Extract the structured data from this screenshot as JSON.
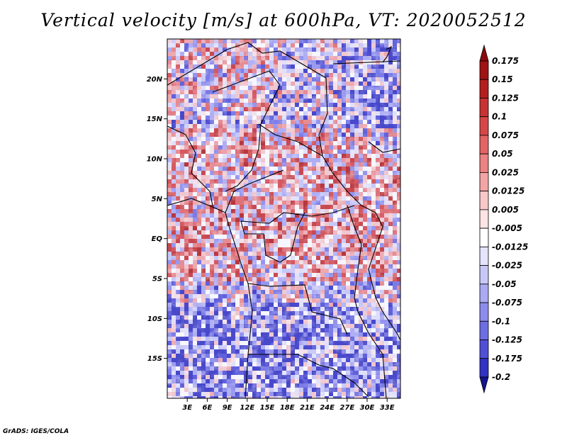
{
  "title": "Vertical velocity [m/s] at 600hPa, VT: 2020052512",
  "footer": "GrADS: IGES/COLA",
  "map": {
    "lon_range": [
      0,
      35
    ],
    "lat_range": [
      -20,
      25
    ],
    "lat_ticks": [
      {
        "value": 20,
        "label": "20N"
      },
      {
        "value": 15,
        "label": "15N"
      },
      {
        "value": 10,
        "label": "10N"
      },
      {
        "value": 5,
        "label": "5N"
      },
      {
        "value": 0,
        "label": "EQ"
      },
      {
        "value": -5,
        "label": "5S"
      },
      {
        "value": -10,
        "label": "10S"
      },
      {
        "value": -15,
        "label": "15S"
      }
    ],
    "lon_ticks": [
      {
        "value": 3,
        "label": "3E"
      },
      {
        "value": 6,
        "label": "6E"
      },
      {
        "value": 9,
        "label": "9E"
      },
      {
        "value": 12,
        "label": "12E"
      },
      {
        "value": 15,
        "label": "15E"
      },
      {
        "value": 18,
        "label": "18E"
      },
      {
        "value": 21,
        "label": "21E"
      },
      {
        "value": 24,
        "label": "24E"
      },
      {
        "value": 27,
        "label": "27E"
      },
      {
        "value": 30,
        "label": "30E"
      },
      {
        "value": 33,
        "label": "33E"
      }
    ]
  },
  "colorbar": {
    "levels": [
      {
        "label": "0.175",
        "color": "#a01414"
      },
      {
        "label": "0.15",
        "color": "#b41e1e"
      },
      {
        "label": "0.125",
        "color": "#c83232"
      },
      {
        "label": "0.1",
        "color": "#d74646"
      },
      {
        "label": "0.075",
        "color": "#e36464"
      },
      {
        "label": "0.05",
        "color": "#ec8282"
      },
      {
        "label": "0.025",
        "color": "#f3a5a5"
      },
      {
        "label": "0.0125",
        "color": "#f8c8c8"
      },
      {
        "label": "0.005",
        "color": "#fce4e4"
      },
      {
        "label": "-0.005",
        "color": "#ffffff"
      },
      {
        "label": "-0.0125",
        "color": "#e4e4fc"
      },
      {
        "label": "-0.025",
        "color": "#c8c8f8"
      },
      {
        "label": "-0.05",
        "color": "#aaaaf3"
      },
      {
        "label": "-0.075",
        "color": "#8c8cec"
      },
      {
        "label": "-0.1",
        "color": "#6e6ee3"
      },
      {
        "label": "-0.125",
        "color": "#5050d7"
      },
      {
        "label": "-0.175",
        "color": "#3232c3"
      },
      {
        "label": "-0.2",
        "color": "#1e1eaa"
      }
    ],
    "top_arrow_color": "#8c0a0a",
    "bottom_arrow_color": "#14148c"
  }
}
